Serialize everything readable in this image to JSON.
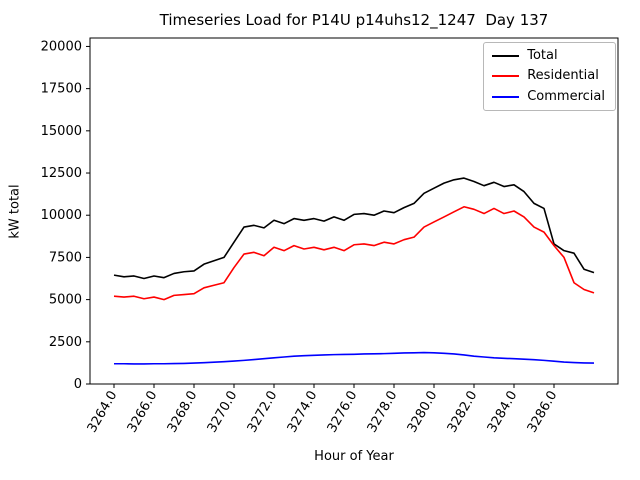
{
  "chart_data": {
    "type": "line",
    "title": "Timeseries Load for P14U p14uhs12_1247  Day 137",
    "xlabel": "Hour of Year",
    "ylabel": "kW total",
    "xlim": [
      3262.8,
      3289.2
    ],
    "ylim": [
      0,
      20500
    ],
    "grid": false,
    "legend_position": "upper right",
    "xtick_values": [
      3264,
      3266,
      3268,
      3270,
      3272,
      3274,
      3276,
      3278,
      3280,
      3282,
      3284,
      3286
    ],
    "xtick_labels": [
      "3264.0",
      "3266.0",
      "3268.0",
      "3270.0",
      "3272.0",
      "3274.0",
      "3276.0",
      "3278.0",
      "3280.0",
      "3282.0",
      "3284.0",
      "3286.0"
    ],
    "ytick_values": [
      0,
      2500,
      5000,
      7500,
      10000,
      12500,
      15000,
      17500,
      20000
    ],
    "ytick_labels": [
      "0",
      "2500",
      "5000",
      "7500",
      "10000",
      "12500",
      "15000",
      "17500",
      "20000"
    ],
    "x": [
      3264,
      3264.5,
      3265,
      3265.5,
      3266,
      3266.5,
      3267,
      3267.5,
      3268,
      3268.5,
      3269,
      3269.5,
      3270,
      3270.5,
      3271,
      3271.5,
      3272,
      3272.5,
      3273,
      3273.5,
      3274,
      3274.5,
      3275,
      3275.5,
      3276,
      3276.5,
      3277,
      3277.5,
      3278,
      3278.5,
      3279,
      3279.5,
      3280,
      3280.5,
      3281,
      3281.5,
      3282,
      3282.5,
      3283,
      3283.5,
      3284,
      3284.5,
      3285,
      3285.5,
      3286,
      3286.5,
      3287,
      3287.5,
      3288
    ],
    "series": [
      {
        "name": "Total",
        "color": "#000000",
        "values": [
          6450,
          6350,
          6400,
          6250,
          6400,
          6300,
          6550,
          6650,
          6700,
          7100,
          7300,
          7500,
          8400,
          9300,
          9400,
          9250,
          9700,
          9500,
          9800,
          9700,
          9800,
          9650,
          9900,
          9700,
          10050,
          10100,
          10000,
          10250,
          10150,
          10450,
          10700,
          11300,
          11600,
          11900,
          12100,
          12200,
          12000,
          11750,
          11950,
          11700,
          11800,
          11400,
          10700,
          10400,
          8300,
          7900,
          7750,
          6800,
          6600
        ]
      },
      {
        "name": "Residential",
        "color": "#ff0000",
        "values": [
          5200,
          5150,
          5200,
          5050,
          5150,
          5000,
          5250,
          5300,
          5350,
          5700,
          5850,
          6000,
          6900,
          7700,
          7800,
          7600,
          8100,
          7900,
          8200,
          8000,
          8100,
          7950,
          8100,
          7900,
          8250,
          8300,
          8200,
          8400,
          8300,
          8550,
          8700,
          9300,
          9600,
          9900,
          10200,
          10500,
          10350,
          10100,
          10400,
          10100,
          10250,
          9900,
          9300,
          9000,
          8200,
          7500,
          6000,
          5600,
          5400
        ]
      },
      {
        "name": "Commercial",
        "color": "#0000ff",
        "values": [
          1200,
          1200,
          1190,
          1190,
          1200,
          1200,
          1210,
          1220,
          1240,
          1260,
          1290,
          1320,
          1360,
          1400,
          1450,
          1500,
          1550,
          1600,
          1650,
          1680,
          1700,
          1720,
          1740,
          1750,
          1760,
          1780,
          1790,
          1800,
          1820,
          1840,
          1850,
          1860,
          1850,
          1820,
          1780,
          1720,
          1650,
          1600,
          1550,
          1520,
          1500,
          1470,
          1440,
          1400,
          1350,
          1300,
          1270,
          1250,
          1240
        ]
      }
    ]
  }
}
